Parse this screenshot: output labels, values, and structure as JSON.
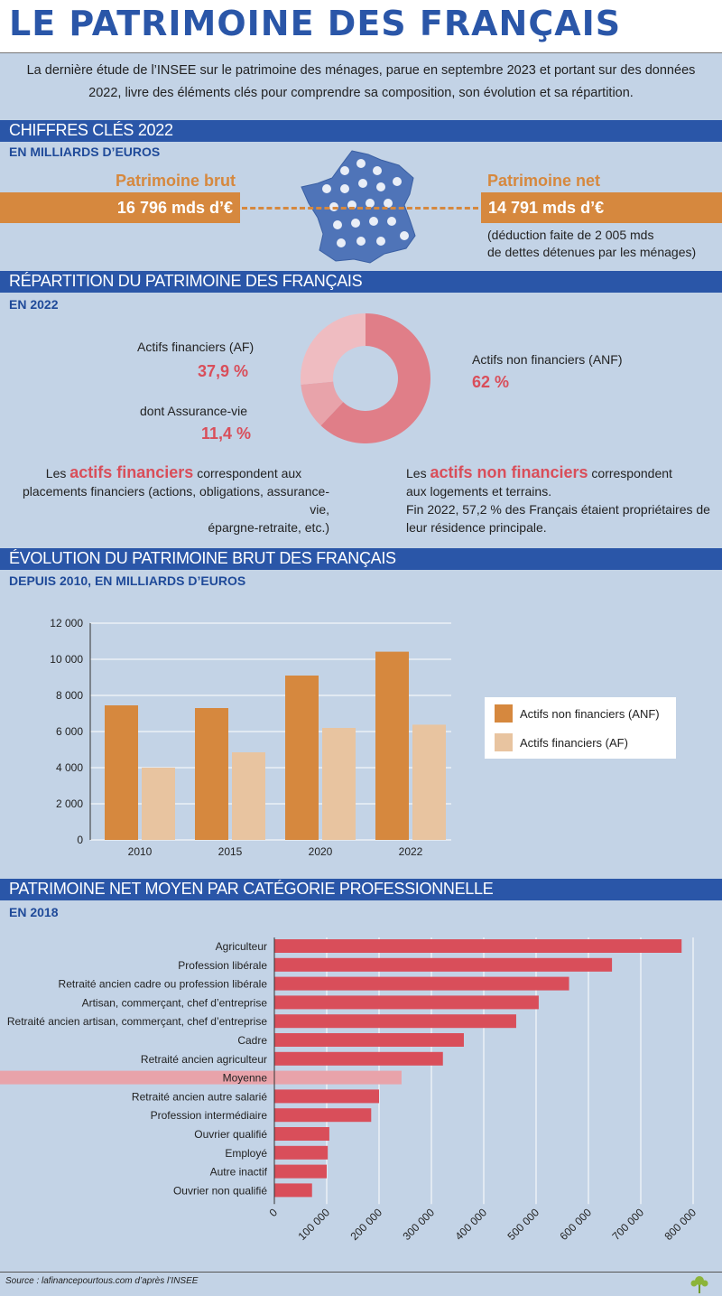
{
  "title": "LE PATRIMOINE DES FRANÇAIS",
  "intro": "La dernière étude de l’INSEE sur le patrimoine des ménages, parue en septembre 2023 et portant sur des données 2022, livre des éléments clés pour comprendre sa composition, son évolution et sa répartition.",
  "sections": {
    "key_figures": {
      "title": "CHIFFRES CLÉS 2022",
      "subtitle": "EN MILLIARDS D’EUROS",
      "gross_label": "Patrimoine brut",
      "gross_value": "16 796 mds d’€",
      "net_label": "Patrimoine net",
      "net_value": "14 791 mds d’€",
      "net_note_1": "(déduction faite de 2 005 mds",
      "net_note_2": "de dettes détenues par les ménages)"
    },
    "distribution": {
      "title": "RÉPARTITION DU PATRIMOINE DES FRANÇAIS",
      "subtitle": "EN 2022",
      "af_label": "Actifs financiers (AF)",
      "af_value": "37,9 %",
      "av_label": "dont Assurance-vie",
      "av_value": "11,4 %",
      "anf_label": "Actifs non financiers (ANF)",
      "anf_value": "62 %",
      "af_text_pre": "Les ",
      "af_text_hl": "actifs financiers",
      "af_text_post": " correspondent aux",
      "af_text_2": "placements financiers (actions, obligations, assurance-vie,",
      "af_text_3": "épargne-retraite, etc.)",
      "anf_text_pre": "Les ",
      "anf_text_hl": "actifs non financiers",
      "anf_text_post": " correspondent",
      "anf_text_2": "aux logements et terrains.",
      "anf_text_3": "Fin 2022, 57,2 % des Français étaient propriétaires de",
      "anf_text_4": "leur résidence principale."
    },
    "evolution": {
      "title": "ÉVOLUTION DU PATRIMOINE BRUT DES FRANÇAIS",
      "subtitle": "DEPUIS 2010, EN MILLIARDS D’EUROS"
    },
    "by_profession": {
      "title": "PATRIMOINE NET MOYEN PAR CATÉGORIE PROFESSIONNELLE",
      "subtitle": "EN 2018"
    }
  },
  "source": "Source : lafinancepourtous.com d’après l’INSEE",
  "colors": {
    "blue": "#2a56a8",
    "orange": "#d6883e",
    "light_orange": "#e8c4a0",
    "red": "#d94e5a",
    "pink": "#e8a3aa",
    "donut_main": "#e07e88",
    "donut_light": "#efbcc1",
    "donut_mid": "#e8a3aa"
  },
  "chart_data": [
    {
      "type": "pie",
      "slices": [
        {
          "label": "Actifs non financiers (ANF)",
          "value": 62.0
        },
        {
          "label": "dont Assurance-vie",
          "value": 11.4
        },
        {
          "label": "Actifs financiers (AF)",
          "value": 26.5
        }
      ]
    },
    {
      "type": "bar",
      "categories": [
        "2010",
        "2015",
        "2020",
        "2022"
      ],
      "series": [
        {
          "name": "Actifs non financiers (ANF)",
          "values": [
            7450,
            7300,
            9100,
            10420
          ]
        },
        {
          "name": "Actifs financiers (AF)",
          "values": [
            4000,
            4850,
            6200,
            6380
          ]
        }
      ],
      "ylim": [
        0,
        12000
      ],
      "yticks": [
        "0",
        "2 000",
        "4 000",
        "6 000",
        "8 000",
        "10 000",
        "12 000"
      ],
      "ytick_values": [
        0,
        2000,
        4000,
        6000,
        8000,
        10000,
        12000
      ],
      "legend": "right",
      "grid": true
    },
    {
      "type": "bar",
      "orientation": "horizontal",
      "categories": [
        "Agriculteur",
        "Profession libérale",
        "Retraité ancien cadre ou profession libérale",
        "Artisan, commerçant, chef d’entreprise",
        "Retraité ancien artisan, commerçant, chef d’entreprise",
        "Cadre",
        "Retraité ancien agriculteur",
        "Moyenne",
        "Retraité ancien autre salarié",
        "Profession intermédiaire",
        "Ouvrier qualifié",
        "Employé",
        "Autre inactif",
        "Ouvrier non qualifié"
      ],
      "values": [
        778000,
        645000,
        563000,
        505000,
        462000,
        362000,
        322000,
        243000,
        200000,
        185000,
        105000,
        102000,
        100000,
        72000
      ],
      "highlight": "Moyenne",
      "xlim": [
        0,
        800000
      ],
      "xticks": [
        "0",
        "100 000",
        "200 000",
        "300 000",
        "400 000",
        "500 000",
        "600 000",
        "700 000",
        "800 000"
      ],
      "xtick_values": [
        0,
        100000,
        200000,
        300000,
        400000,
        500000,
        600000,
        700000,
        800000
      ],
      "grid": true
    }
  ]
}
